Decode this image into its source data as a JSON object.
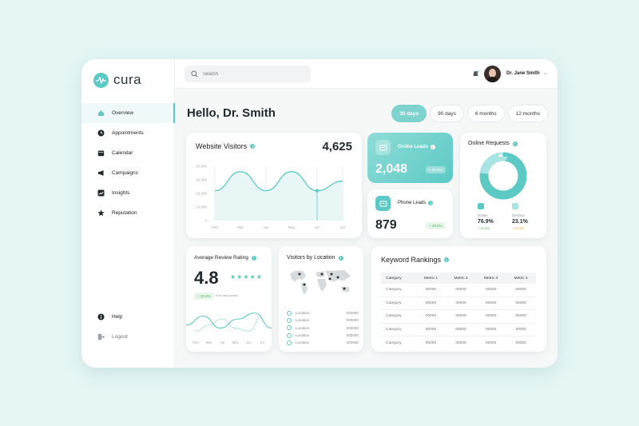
{
  "app": {
    "name": "cura"
  },
  "sidebar": {
    "items": [
      {
        "label": "Overview",
        "icon": "home-icon",
        "active": true
      },
      {
        "label": "Appointments",
        "icon": "clock-icon"
      },
      {
        "label": "Calendar",
        "icon": "calendar-icon"
      },
      {
        "label": "Campaigns",
        "icon": "megaphone-icon"
      },
      {
        "label": "Insights",
        "icon": "chart-icon"
      },
      {
        "label": "Reputation",
        "icon": "star-icon"
      }
    ],
    "bottom": [
      {
        "label": "Help",
        "icon": "info-icon"
      },
      {
        "label": "Logout",
        "icon": "logout-icon"
      }
    ]
  },
  "topbar": {
    "search_placeholder": "Search",
    "user_name": "Dr. Jane Smith"
  },
  "greeting": "Hello, Dr. Smith",
  "ranges": [
    {
      "label": "30 days",
      "active": true
    },
    {
      "label": "90 days"
    },
    {
      "label": "6 months"
    },
    {
      "label": "12 months"
    }
  ],
  "visitors": {
    "title": "Website Visitors",
    "total": "4,625",
    "chart_data": {
      "type": "line",
      "categories": [
        "Feb",
        "Mar",
        "Apr",
        "May",
        "Jun",
        "Jul"
      ],
      "y_ticks": [
        "40,000",
        "30,000",
        "20,000",
        "10,000",
        "0"
      ],
      "ylim": [
        0,
        40000
      ],
      "values": [
        22000,
        36000,
        22000,
        36000,
        22000,
        29000
      ],
      "highlight_index": 4
    }
  },
  "online_leads": {
    "title": "Online Leads",
    "value": "2,048",
    "change": "+ 20.0%"
  },
  "phone_leads": {
    "title": "Phone Leads",
    "value": "879",
    "change": "+ 10.0%"
  },
  "online_requests": {
    "title": "Online Requests",
    "chart_data": {
      "type": "pie",
      "categories": [
        "Mobile",
        "Desktop"
      ],
      "values": [
        76.9,
        23.1
      ]
    },
    "mobile": {
      "label": "Mobile",
      "value": "76.9%",
      "change": "+ 10.0%"
    },
    "desktop": {
      "label": "Desktop",
      "value": "23.1%",
      "change": "+ 10.0%"
    }
  },
  "review": {
    "title": "Average Review Rating",
    "rating": "4.8",
    "stars": 5,
    "change": "+ 20.0%",
    "change_note": "from last period",
    "chart_data": {
      "type": "line",
      "categories": [
        "Feb",
        "Mar",
        "Apr",
        "May",
        "Jun",
        "Jul"
      ],
      "series": [
        {
          "values": [
            3,
            6,
            2,
            5,
            7,
            2
          ]
        },
        {
          "values": [
            1,
            3,
            5,
            2,
            1,
            6
          ]
        }
      ]
    }
  },
  "location": {
    "title": "Visitors by Location",
    "rows": [
      {
        "label": "Location",
        "value": "000000"
      },
      {
        "label": "Location",
        "value": "000000"
      },
      {
        "label": "Location",
        "value": "000000"
      },
      {
        "label": "Location",
        "value": "000000"
      },
      {
        "label": "Location",
        "value": "000000"
      }
    ]
  },
  "keywords": {
    "title": "Keyword Rankings",
    "headers": [
      "Category",
      "Metric 1",
      "Metric 2",
      "Metric 3",
      "Metric 4"
    ],
    "rows": [
      [
        "Category",
        "00000",
        "00000",
        "00000",
        "00000"
      ],
      [
        "Category",
        "00000",
        "00000",
        "00000",
        "00000"
      ],
      [
        "Category",
        "00000",
        "00000",
        "00000",
        "00000"
      ],
      [
        "Category",
        "00000",
        "00000",
        "00000",
        "00000"
      ],
      [
        "Category",
        "00000",
        "00000",
        "00000",
        "00000"
      ]
    ]
  },
  "colors": {
    "accent": "#5cc9c4",
    "accent_light": "#a8e4e1",
    "positive": "#4caf50"
  }
}
